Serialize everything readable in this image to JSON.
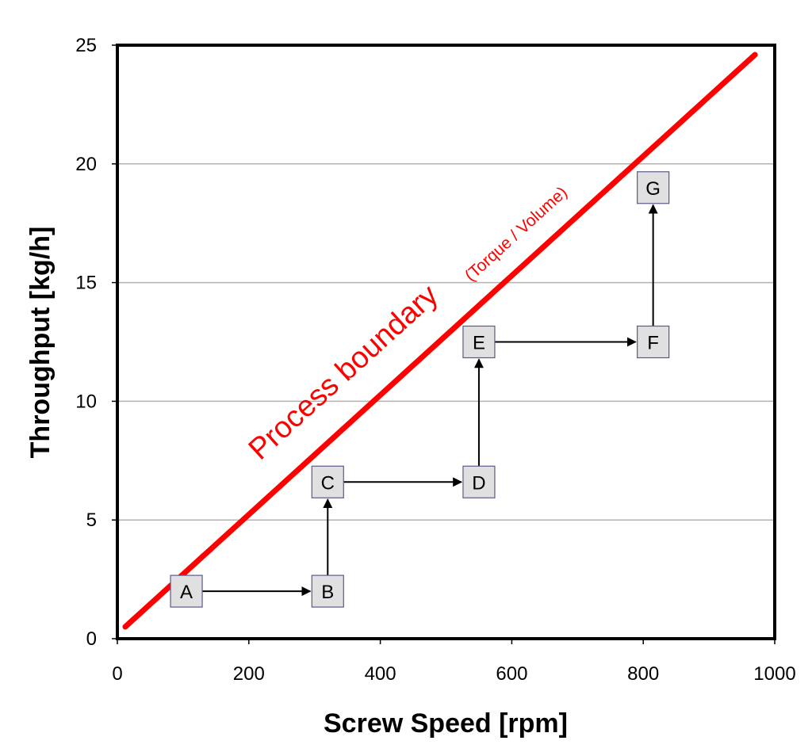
{
  "chart_data": {
    "type": "scatter",
    "title": "",
    "xlabel": "Screw Speed [rpm]",
    "ylabel": "Throughput [kg/h]",
    "xlim": [
      0,
      1000
    ],
    "ylim": [
      0,
      25
    ],
    "xticks": [
      "0",
      "200",
      "400",
      "600",
      "800",
      "1000"
    ],
    "yticks": [
      "0",
      "5",
      "10",
      "15",
      "20",
      "25"
    ],
    "grid": "horizontal",
    "series": [
      {
        "points": [
          {
            "label": "A",
            "x": 105,
            "y": 2.0
          },
          {
            "label": "B",
            "x": 320,
            "y": 2.0
          },
          {
            "label": "C",
            "x": 320,
            "y": 6.6
          },
          {
            "label": "D",
            "x": 550,
            "y": 6.6
          },
          {
            "label": "E",
            "x": 550,
            "y": 12.5
          },
          {
            "label": "F",
            "x": 815,
            "y": 12.5
          },
          {
            "label": "G",
            "x": 815,
            "y": 19.0
          }
        ],
        "arrows": [
          [
            "A",
            "B"
          ],
          [
            "B",
            "C"
          ],
          [
            "C",
            "D"
          ],
          [
            "D",
            "E"
          ],
          [
            "E",
            "F"
          ],
          [
            "F",
            "G"
          ]
        ]
      }
    ],
    "boundary": {
      "text_main": "Process boundary",
      "text_sub": "(Torque / Volume)",
      "color": "#ff0000",
      "from": {
        "x": 12,
        "y": 0.5
      },
      "to": {
        "x": 970,
        "y": 24.6
      }
    },
    "colors": {
      "grid": "#b3b3b3",
      "box_fill": "#e0e0e0",
      "box_stroke": "#5a5a8a",
      "arrow": "#000000",
      "axis": "#000000"
    }
  }
}
